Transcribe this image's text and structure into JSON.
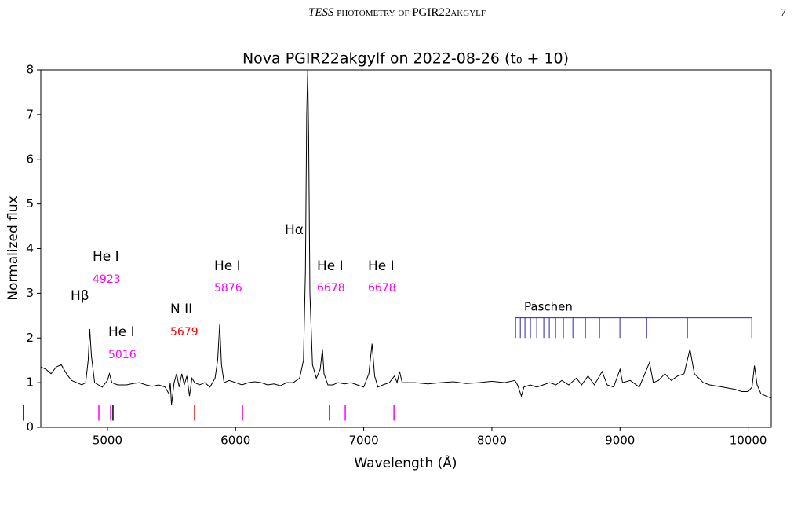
{
  "running_head": [
    "TESS",
    "photometry of PGIR22akgylf"
  ],
  "page_number": "7",
  "chart_data": {
    "type": "line",
    "title": "Nova PGIR22akgylf on 2022-08-26 (t₀ + 10)",
    "xlabel": "Wavelength (Å)",
    "ylabel": "Normalized flux",
    "xlim": [
      4480,
      10180
    ],
    "ylim": [
      0,
      8
    ],
    "xticks": [
      5000,
      6000,
      7000,
      8000,
      9000,
      10000
    ],
    "yticks": [
      0,
      1,
      2,
      3,
      4,
      5,
      6,
      7,
      8
    ],
    "color": "#000000",
    "x": [
      4480,
      4520,
      4560,
      4600,
      4640,
      4680,
      4720,
      4760,
      4800,
      4830,
      4850,
      4862,
      4875,
      4900,
      4930,
      4960,
      5000,
      5016,
      5035,
      5080,
      5150,
      5200,
      5250,
      5300,
      5350,
      5400,
      5450,
      5480,
      5490,
      5500,
      5520,
      5540,
      5560,
      5580,
      5600,
      5620,
      5640,
      5660,
      5680,
      5720,
      5760,
      5800,
      5840,
      5860,
      5876,
      5890,
      5910,
      5950,
      6000,
      6050,
      6100,
      6150,
      6200,
      6250,
      6300,
      6350,
      6400,
      6450,
      6500,
      6530,
      6545,
      6555,
      6563,
      6570,
      6580,
      6600,
      6630,
      6660,
      6678,
      6690,
      6720,
      6760,
      6800,
      6850,
      6900,
      6950,
      7000,
      7040,
      7065,
      7085,
      7110,
      7150,
      7200,
      7240,
      7260,
      7280,
      7300,
      7400,
      7500,
      7600,
      7700,
      7800,
      7900,
      8000,
      8100,
      8180,
      8200,
      8230,
      8250,
      8300,
      8350,
      8400,
      8450,
      8500,
      8545,
      8600,
      8660,
      8700,
      8750,
      8800,
      8860,
      8900,
      8950,
      9000,
      9020,
      9080,
      9150,
      9230,
      9260,
      9300,
      9350,
      9400,
      9450,
      9500,
      9546,
      9580,
      9650,
      9700,
      9800,
      9900,
      9950,
      10000,
      10030,
      10049,
      10070,
      10100,
      10180
    ],
    "values": [
      1.35,
      1.3,
      1.2,
      1.35,
      1.4,
      1.2,
      1.05,
      1.0,
      0.95,
      1.0,
      1.5,
      2.2,
      1.6,
      1.0,
      0.95,
      0.9,
      1.05,
      1.2,
      1.0,
      0.95,
      0.95,
      0.98,
      1.0,
      0.95,
      0.92,
      0.95,
      0.9,
      0.75,
      1.0,
      0.5,
      1.0,
      1.2,
      0.9,
      1.2,
      0.95,
      1.15,
      0.7,
      1.1,
      1.0,
      0.95,
      1.0,
      0.9,
      1.1,
      1.5,
      2.3,
      1.4,
      1.0,
      1.05,
      1.0,
      0.95,
      1.0,
      1.02,
      1.0,
      0.95,
      0.97,
      0.93,
      1.0,
      1.0,
      1.1,
      1.5,
      3.5,
      7.0,
      8.0,
      6.5,
      3.0,
      1.4,
      1.1,
      1.3,
      1.75,
      1.2,
      0.95,
      0.95,
      1.0,
      0.97,
      1.0,
      0.95,
      0.9,
      1.2,
      1.87,
      1.15,
      0.9,
      0.95,
      1.0,
      1.15,
      1.0,
      1.25,
      1.0,
      1.0,
      0.97,
      1.0,
      1.02,
      0.98,
      1.0,
      1.03,
      1.0,
      1.05,
      0.95,
      0.7,
      0.9,
      0.95,
      0.9,
      0.95,
      1.0,
      0.95,
      1.05,
      0.95,
      1.1,
      0.95,
      1.15,
      0.95,
      1.25,
      0.95,
      0.9,
      1.3,
      1.0,
      1.05,
      0.9,
      1.45,
      1.0,
      1.05,
      1.2,
      1.05,
      1.15,
      1.2,
      1.75,
      1.2,
      1.0,
      0.95,
      0.9,
      0.85,
      0.8,
      0.8,
      0.9,
      1.38,
      0.95,
      0.75,
      0.65
    ],
    "marker_range": [
      0.15,
      0.5
    ],
    "line_markers": [
      {
        "x": 4345,
        "color": "#000000"
      },
      {
        "x": 4933,
        "color": "#ff00ff"
      },
      {
        "x": 5025,
        "color": "#ff00ff"
      },
      {
        "x": 5043,
        "color": "#000000"
      },
      {
        "x": 5680,
        "color": "#ff0000"
      },
      {
        "x": 6054,
        "color": "#ff00ff"
      },
      {
        "x": 6734,
        "color": "#000000"
      },
      {
        "x": 6856,
        "color": "#ff00ff"
      },
      {
        "x": 7236,
        "color": "#ff00ff"
      }
    ],
    "annotations": [
      {
        "text": "Hβ",
        "color": "#000000"
      },
      {
        "text": "He I",
        "color": "#000000"
      },
      {
        "text": "4923",
        "color": "#ff00ff"
      },
      {
        "text": "He I",
        "color": "#000000"
      },
      {
        "text": "5016",
        "color": "#ff00ff"
      },
      {
        "text": "N II",
        "color": "#000000"
      },
      {
        "text": "5679",
        "color": "#ff0000"
      },
      {
        "text": "He I",
        "color": "#000000"
      },
      {
        "text": "5876",
        "color": "#ff00ff"
      },
      {
        "text": "Hα",
        "color": "#000000"
      },
      {
        "text": "He I",
        "color": "#000000"
      },
      {
        "text": "6678",
        "color": "#ff00ff"
      },
      {
        "text": "He I",
        "color": "#000000"
      },
      {
        "text": "6678",
        "color": "#ff00ff"
      }
    ],
    "paschen": {
      "label": "Paschen",
      "color": "#2525b5",
      "y_top": 2.45,
      "y_bottom": 2.0,
      "lines": [
        8185,
        8222,
        8258,
        8301,
        8350,
        8405,
        8448,
        8497,
        8558,
        8632,
        8730,
        8840,
        8999,
        9208,
        9526,
        10028
      ]
    }
  }
}
